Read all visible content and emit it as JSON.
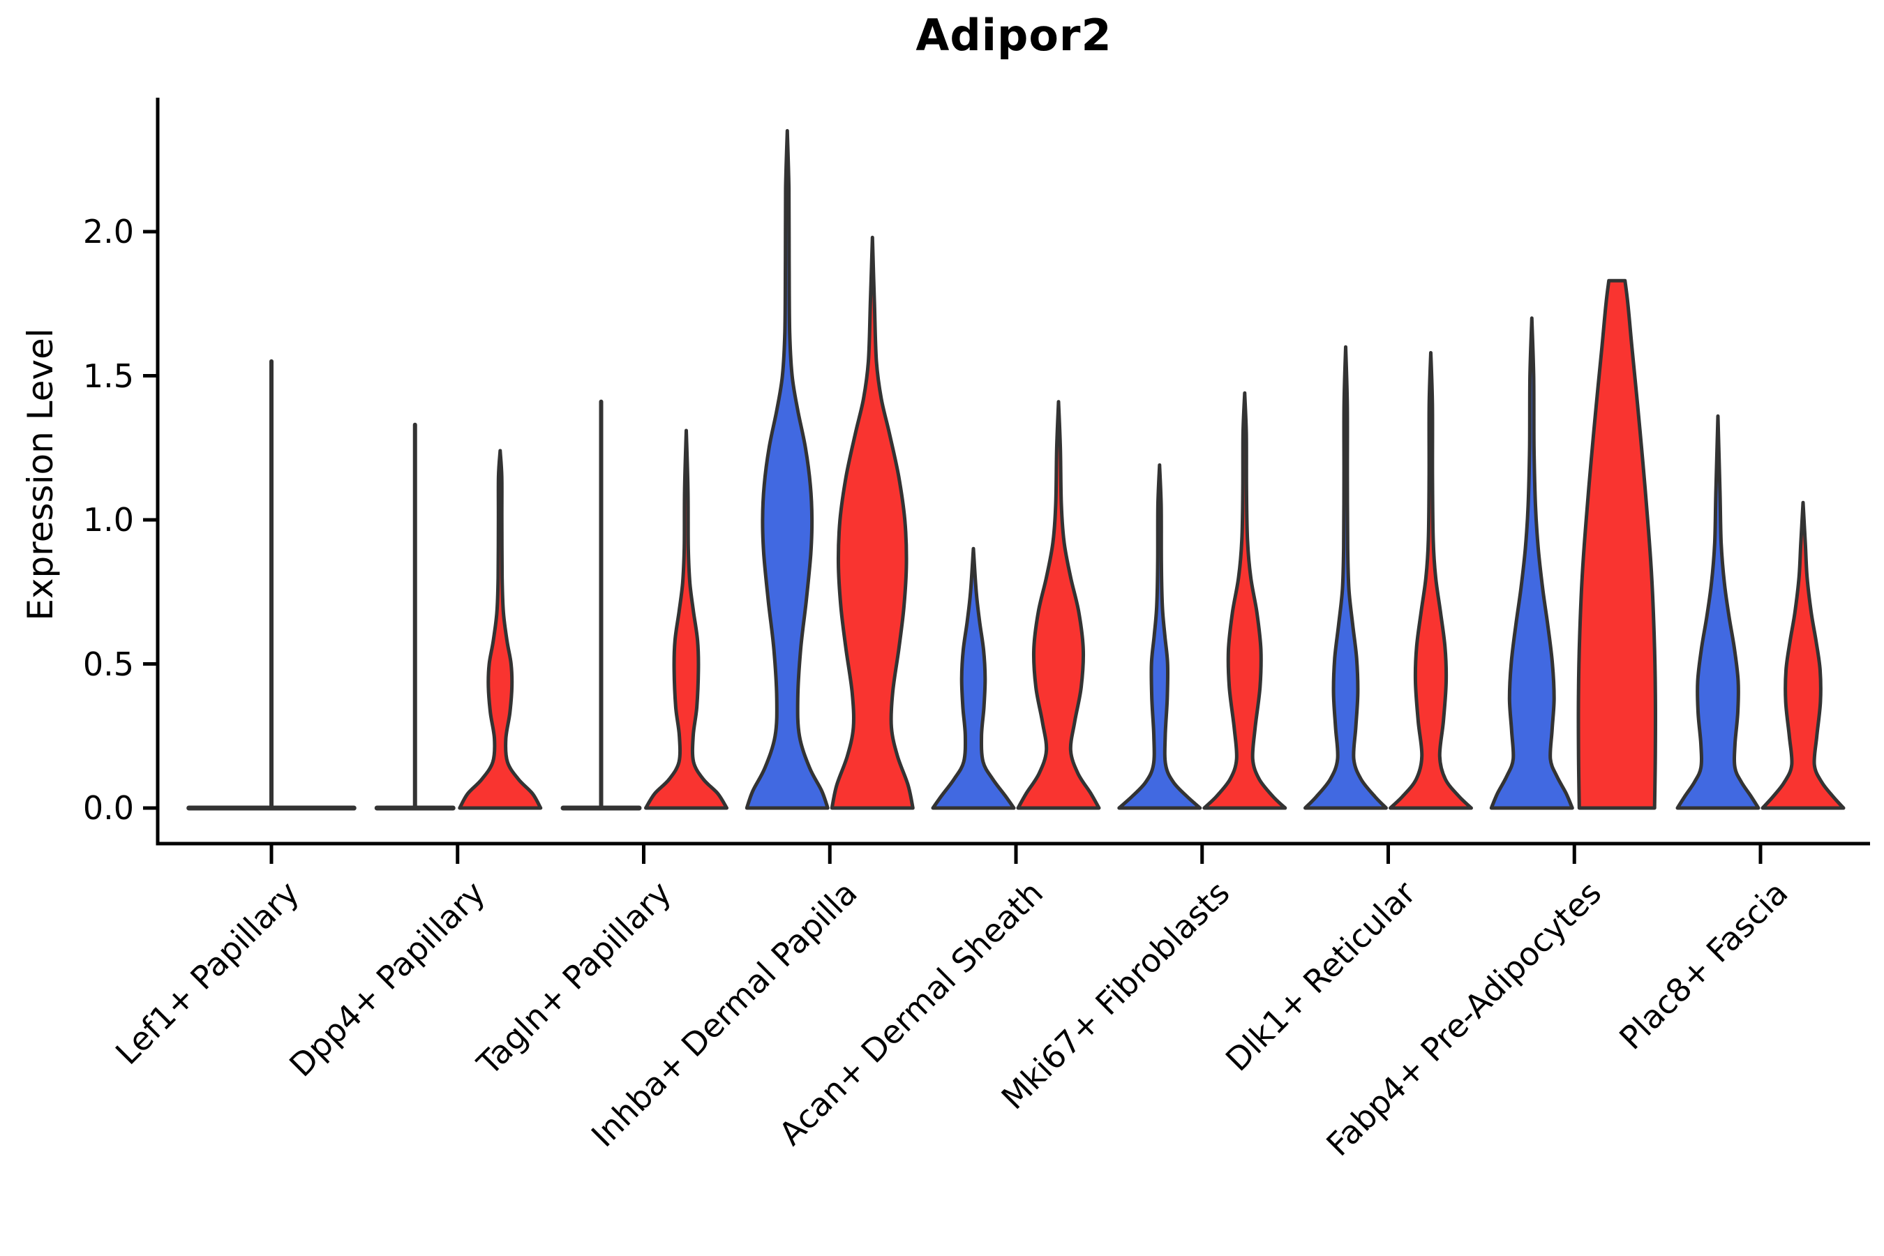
{
  "title": "Adipor2",
  "y_axis": {
    "label": "Expression Level",
    "tick_labels": [
      "0.0",
      "0.5",
      "1.0",
      "1.5",
      "2.0"
    ],
    "tick_values": [
      0.0,
      0.5,
      1.0,
      1.5,
      2.0
    ]
  },
  "x_axis": {
    "categories": [
      "Lef1+ Papillary",
      "Dpp4+ Papillary",
      "Tagln+ Papillary",
      "Inhba+ Dermal Papilla",
      "Acan+ Dermal Sheath",
      "Mki67+ Fibroblasts",
      "Dlk1+ Reticular",
      "Fabp4+ Pre-Adipocytes",
      "Plac8+ Fascia"
    ]
  },
  "colors": {
    "blue_fill": "#4169E1",
    "red_fill": "#F93430",
    "outline": "#333333",
    "axis": "#000000",
    "background": "#ffffff"
  },
  "chart_data": {
    "type": "violin",
    "title": "Adipor2",
    "xlabel": "",
    "ylabel": "Expression Level",
    "ylim": [
      -0.125,
      2.465
    ],
    "yticks": [
      0.0,
      0.5,
      1.0,
      1.5,
      2.0
    ],
    "grid": false,
    "legend": "none",
    "categories": [
      "Lef1+ Papillary",
      "Dpp4+ Papillary",
      "Tagln+ Papillary",
      "Inhba+ Dermal Papilla",
      "Acan+ Dermal Sheath",
      "Mki67+ Fibroblasts",
      "Dlk1+ Reticular",
      "Fabp4+ Pre-Adipocytes",
      "Plac8+ Fascia"
    ],
    "series": [
      {
        "name": "blue",
        "color": "#4169E1",
        "max_expression": [
          1.55,
          1.33,
          1.41,
          2.35,
          0.9,
          1.19,
          1.6,
          1.7,
          1.36
        ]
      },
      {
        "name": "red",
        "color": "#F93430",
        "max_expression": [
          null,
          1.24,
          1.31,
          1.98,
          1.41,
          1.44,
          1.58,
          1.83,
          1.06
        ]
      }
    ],
    "violins": [
      {
        "category_index": 0,
        "category": "Lef1+ Papillary",
        "series": "blue",
        "side": "center",
        "kind": "stem",
        "max": 1.55,
        "base_halfwidth_ratio": 2.1
      },
      {
        "category_index": 1,
        "category": "Dpp4+ Papillary",
        "series": "blue",
        "side": "left",
        "kind": "stem",
        "max": 1.33,
        "base_halfwidth_ratio": 1.0
      },
      {
        "category_index": 1,
        "category": "Dpp4+ Papillary",
        "series": "red",
        "side": "right",
        "kind": "violin",
        "max": 1.24,
        "profile": [
          [
            0,
            1.0
          ],
          [
            0.05,
            0.8
          ],
          [
            0.1,
            0.45
          ],
          [
            0.16,
            0.18
          ],
          [
            0.24,
            0.14
          ],
          [
            0.33,
            0.24
          ],
          [
            0.42,
            0.29
          ],
          [
            0.5,
            0.27
          ],
          [
            0.58,
            0.17
          ],
          [
            0.68,
            0.08
          ],
          [
            0.8,
            0.05
          ],
          [
            1.0,
            0.042
          ],
          [
            1.15,
            0.04
          ],
          [
            1.24,
            0.0
          ]
        ]
      },
      {
        "category_index": 2,
        "category": "Tagln+ Papillary",
        "series": "blue",
        "side": "left",
        "kind": "stem",
        "max": 1.41,
        "base_halfwidth_ratio": 1.0
      },
      {
        "category_index": 2,
        "category": "Tagln+ Papillary",
        "series": "red",
        "side": "right",
        "kind": "violin",
        "max": 1.31,
        "profile": [
          [
            0,
            1.0
          ],
          [
            0.05,
            0.78
          ],
          [
            0.1,
            0.42
          ],
          [
            0.16,
            0.18
          ],
          [
            0.25,
            0.17
          ],
          [
            0.35,
            0.26
          ],
          [
            0.48,
            0.3
          ],
          [
            0.58,
            0.28
          ],
          [
            0.68,
            0.18
          ],
          [
            0.78,
            0.09
          ],
          [
            0.9,
            0.05
          ],
          [
            1.1,
            0.042
          ],
          [
            1.31,
            0.0
          ]
        ]
      },
      {
        "category_index": 3,
        "category": "Inhba+ Dermal Papilla",
        "series": "blue",
        "side": "left",
        "kind": "violin",
        "max": 2.35,
        "profile": [
          [
            0,
            1.0
          ],
          [
            0.06,
            0.85
          ],
          [
            0.14,
            0.55
          ],
          [
            0.25,
            0.3
          ],
          [
            0.38,
            0.26
          ],
          [
            0.55,
            0.33
          ],
          [
            0.72,
            0.47
          ],
          [
            0.88,
            0.58
          ],
          [
            1.0,
            0.61
          ],
          [
            1.12,
            0.57
          ],
          [
            1.25,
            0.45
          ],
          [
            1.38,
            0.26
          ],
          [
            1.5,
            0.12
          ],
          [
            1.65,
            0.06
          ],
          [
            1.9,
            0.045
          ],
          [
            2.15,
            0.04
          ],
          [
            2.35,
            0.0
          ]
        ]
      },
      {
        "category_index": 3,
        "category": "Inhba+ Dermal Papilla",
        "series": "red",
        "side": "right",
        "kind": "violin",
        "max": 1.98,
        "profile": [
          [
            0,
            1.0
          ],
          [
            0.08,
            0.88
          ],
          [
            0.18,
            0.62
          ],
          [
            0.28,
            0.47
          ],
          [
            0.4,
            0.5
          ],
          [
            0.55,
            0.65
          ],
          [
            0.7,
            0.78
          ],
          [
            0.85,
            0.84
          ],
          [
            1.0,
            0.8
          ],
          [
            1.15,
            0.65
          ],
          [
            1.3,
            0.42
          ],
          [
            1.42,
            0.22
          ],
          [
            1.55,
            0.1
          ],
          [
            1.75,
            0.05
          ],
          [
            1.98,
            0.0
          ]
        ]
      },
      {
        "category_index": 4,
        "category": "Acan+ Dermal Sheath",
        "series": "blue",
        "side": "left",
        "kind": "violin",
        "max": 0.9,
        "profile": [
          [
            0,
            1.0
          ],
          [
            0.04,
            0.8
          ],
          [
            0.1,
            0.48
          ],
          [
            0.16,
            0.24
          ],
          [
            0.25,
            0.2
          ],
          [
            0.35,
            0.26
          ],
          [
            0.45,
            0.29
          ],
          [
            0.55,
            0.25
          ],
          [
            0.65,
            0.15
          ],
          [
            0.75,
            0.07
          ],
          [
            0.9,
            0.0
          ]
        ]
      },
      {
        "category_index": 4,
        "category": "Acan+ Dermal Sheath",
        "series": "red",
        "side": "right",
        "kind": "violin",
        "max": 1.41,
        "profile": [
          [
            0,
            1.0
          ],
          [
            0.05,
            0.8
          ],
          [
            0.12,
            0.48
          ],
          [
            0.2,
            0.3
          ],
          [
            0.3,
            0.4
          ],
          [
            0.42,
            0.56
          ],
          [
            0.55,
            0.61
          ],
          [
            0.68,
            0.5
          ],
          [
            0.8,
            0.3
          ],
          [
            0.92,
            0.14
          ],
          [
            1.05,
            0.07
          ],
          [
            1.25,
            0.045
          ],
          [
            1.41,
            0.0
          ]
        ]
      },
      {
        "category_index": 5,
        "category": "Mki67+ Fibroblasts",
        "series": "blue",
        "side": "left",
        "kind": "violin",
        "max": 1.19,
        "profile": [
          [
            0,
            1.0
          ],
          [
            0.04,
            0.68
          ],
          [
            0.09,
            0.34
          ],
          [
            0.15,
            0.15
          ],
          [
            0.25,
            0.14
          ],
          [
            0.38,
            0.19
          ],
          [
            0.5,
            0.2
          ],
          [
            0.6,
            0.13
          ],
          [
            0.7,
            0.07
          ],
          [
            0.85,
            0.045
          ],
          [
            1.05,
            0.04
          ],
          [
            1.19,
            0.0
          ]
        ]
      },
      {
        "category_index": 5,
        "category": "Mki67+ Fibroblasts",
        "series": "red",
        "side": "right",
        "kind": "violin",
        "max": 1.44,
        "profile": [
          [
            0,
            1.0
          ],
          [
            0.04,
            0.7
          ],
          [
            0.1,
            0.36
          ],
          [
            0.17,
            0.2
          ],
          [
            0.28,
            0.26
          ],
          [
            0.42,
            0.38
          ],
          [
            0.55,
            0.4
          ],
          [
            0.68,
            0.3
          ],
          [
            0.8,
            0.15
          ],
          [
            0.93,
            0.07
          ],
          [
            1.1,
            0.045
          ],
          [
            1.3,
            0.04
          ],
          [
            1.44,
            0.0
          ]
        ]
      },
      {
        "category_index": 6,
        "category": "Dlk1+ Reticular",
        "series": "blue",
        "side": "left",
        "kind": "violin",
        "max": 1.6,
        "profile": [
          [
            0,
            1.0
          ],
          [
            0.04,
            0.72
          ],
          [
            0.1,
            0.38
          ],
          [
            0.17,
            0.2
          ],
          [
            0.28,
            0.25
          ],
          [
            0.4,
            0.3
          ],
          [
            0.52,
            0.27
          ],
          [
            0.64,
            0.17
          ],
          [
            0.76,
            0.08
          ],
          [
            0.9,
            0.05
          ],
          [
            1.15,
            0.042
          ],
          [
            1.4,
            0.04
          ],
          [
            1.6,
            0.0
          ]
        ]
      },
      {
        "category_index": 6,
        "category": "Dlk1+ Reticular",
        "series": "red",
        "side": "right",
        "kind": "violin",
        "max": 1.58,
        "profile": [
          [
            0,
            1.0
          ],
          [
            0.04,
            0.7
          ],
          [
            0.1,
            0.36
          ],
          [
            0.18,
            0.22
          ],
          [
            0.3,
            0.31
          ],
          [
            0.44,
            0.38
          ],
          [
            0.56,
            0.35
          ],
          [
            0.68,
            0.24
          ],
          [
            0.8,
            0.12
          ],
          [
            0.93,
            0.06
          ],
          [
            1.15,
            0.042
          ],
          [
            1.4,
            0.04
          ],
          [
            1.58,
            0.0
          ]
        ]
      },
      {
        "category_index": 7,
        "category": "Fabp4+ Pre-Adipocytes",
        "series": "blue",
        "side": "left",
        "kind": "violin",
        "max": 1.7,
        "profile": [
          [
            0,
            1.0
          ],
          [
            0.05,
            0.85
          ],
          [
            0.11,
            0.62
          ],
          [
            0.17,
            0.46
          ],
          [
            0.27,
            0.5
          ],
          [
            0.38,
            0.55
          ],
          [
            0.5,
            0.51
          ],
          [
            0.63,
            0.4
          ],
          [
            0.76,
            0.27
          ],
          [
            0.9,
            0.16
          ],
          [
            1.05,
            0.09
          ],
          [
            1.25,
            0.055
          ],
          [
            1.5,
            0.045
          ],
          [
            1.7,
            0.0
          ]
        ]
      },
      {
        "category_index": 7,
        "category": "Fabp4+ Pre-Adipocytes",
        "series": "red",
        "side": "right",
        "kind": "violin",
        "max": 1.83,
        "flat_top": true,
        "profile": [
          [
            0,
            0.93
          ],
          [
            0.2,
            0.95
          ],
          [
            0.4,
            0.95
          ],
          [
            0.6,
            0.92
          ],
          [
            0.8,
            0.86
          ],
          [
            1.0,
            0.76
          ],
          [
            1.2,
            0.64
          ],
          [
            1.4,
            0.51
          ],
          [
            1.6,
            0.37
          ],
          [
            1.75,
            0.27
          ],
          [
            1.83,
            0.2
          ]
        ]
      },
      {
        "category_index": 8,
        "category": "Plac8+ Fascia",
        "series": "blue",
        "side": "left",
        "kind": "violin",
        "max": 1.36,
        "profile": [
          [
            0,
            1.0
          ],
          [
            0.04,
            0.82
          ],
          [
            0.09,
            0.58
          ],
          [
            0.14,
            0.42
          ],
          [
            0.22,
            0.42
          ],
          [
            0.33,
            0.49
          ],
          [
            0.44,
            0.5
          ],
          [
            0.55,
            0.41
          ],
          [
            0.66,
            0.28
          ],
          [
            0.78,
            0.16
          ],
          [
            0.92,
            0.08
          ],
          [
            1.1,
            0.05
          ],
          [
            1.36,
            0.0
          ]
        ]
      },
      {
        "category_index": 8,
        "category": "Plac8+ Fascia",
        "series": "red",
        "side": "right",
        "kind": "violin",
        "max": 1.06,
        "profile": [
          [
            0,
            1.0
          ],
          [
            0.04,
            0.74
          ],
          [
            0.09,
            0.46
          ],
          [
            0.15,
            0.28
          ],
          [
            0.25,
            0.34
          ],
          [
            0.37,
            0.43
          ],
          [
            0.48,
            0.42
          ],
          [
            0.58,
            0.32
          ],
          [
            0.68,
            0.2
          ],
          [
            0.8,
            0.1
          ],
          [
            0.92,
            0.055
          ],
          [
            1.06,
            0.0
          ]
        ]
      }
    ]
  }
}
